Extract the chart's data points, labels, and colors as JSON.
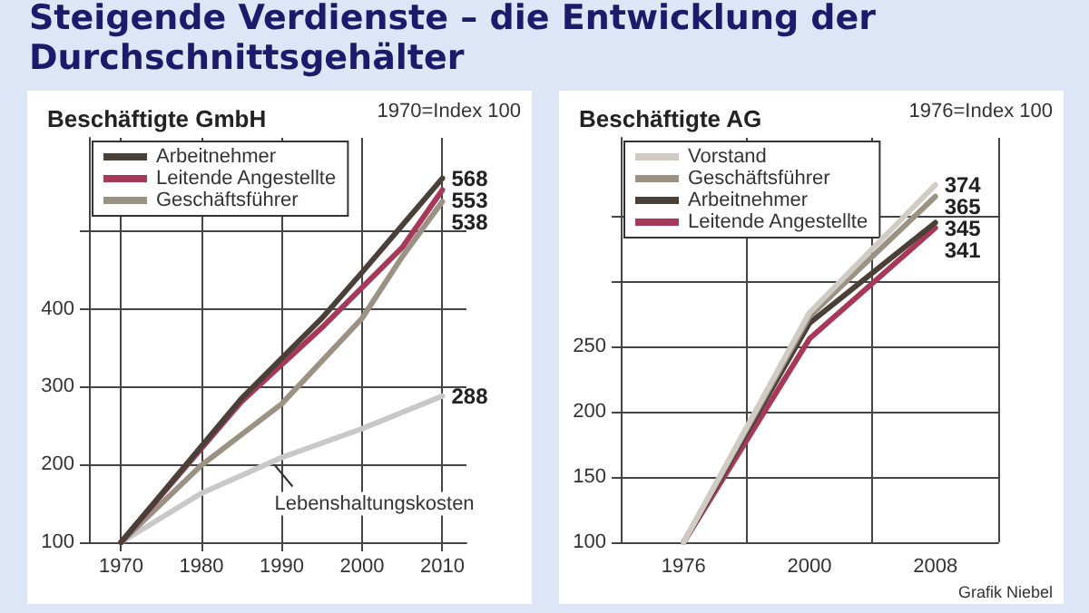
{
  "chart_data": [
    {
      "type": "line",
      "title": "Steigende Verdienste – die Entwicklung der Durchschnittsgehälter",
      "subtitle": "Beschäftigte GmbH",
      "xlim": [
        1966,
        2013
      ],
      "xticks": [
        1970,
        1980,
        1990,
        2000,
        2010
      ],
      "ylim": [
        100,
        620
      ],
      "yticks": [
        100,
        200,
        300,
        400,
        {
          "value": 500,
          "label": null
        }
      ],
      "grid": true,
      "legend": "top left",
      "marker": "none",
      "line_style": "solid",
      "series": [
        {
          "name": "Arbeitnehmer",
          "color": "#4a4038",
          "x": [
            1970,
            1985,
            1995,
            2000,
            2010
          ],
          "values": [
            100,
            285,
            388,
            447,
            568
          ],
          "value_labels": [
            null,
            null,
            null,
            null,
            "568"
          ]
        },
        {
          "name": "Leitende Angestellte",
          "color": "#a8385a",
          "x": [
            1970,
            1985,
            1995,
            2005,
            2010
          ],
          "values": [
            100,
            281,
            376,
            479,
            553
          ],
          "value_labels": [
            null,
            null,
            null,
            null,
            "553"
          ]
        },
        {
          "name": "Geschäftsführer",
          "color": "#9c9284",
          "x": [
            1970,
            1980,
            1990,
            2000,
            2005,
            2010
          ],
          "values": [
            100,
            199,
            278,
            388,
            467,
            538
          ],
          "value_labels": [
            null,
            null,
            null,
            null,
            null,
            "538"
          ]
        },
        {
          "color": "#c8c8c8",
          "x": [
            1970,
            1980,
            1990,
            2000,
            2010
          ],
          "values": [
            100,
            163,
            209,
            246,
            288
          ],
          "value_labels": [
            null,
            null,
            null,
            null,
            "288"
          ]
        }
      ],
      "annotations": [
        "1970=Index 100",
        {
          "text": "Lebenshaltungskosten",
          "x": 1990,
          "y": 209
        }
      ]
    },
    {
      "type": "line",
      "title": "Beschäftigte AG",
      "categories": [
        "1976",
        "2000",
        "2008"
      ],
      "ylim": [
        100,
        410
      ],
      "yticks": [
        100,
        150,
        200,
        250,
        {
          "value": 300,
          "label": null
        },
        {
          "value": 350,
          "label": null
        }
      ],
      "grid": true,
      "legend": "top left",
      "marker": "none",
      "line_style": "solid",
      "series": [
        {
          "name": "Vorstand",
          "color": "#d0ccc4",
          "values": [
            100,
            276,
            374
          ],
          "value_labels": [
            null,
            null,
            "374"
          ]
        },
        {
          "name": "Geschäftsführer",
          "color": "#9c9284",
          "values": [
            100,
            273,
            365
          ],
          "value_labels": [
            null,
            null,
            "365"
          ]
        },
        {
          "name": "Arbeitnehmer",
          "color": "#4a4038",
          "values": [
            100,
            268,
            345
          ],
          "value_labels": [
            null,
            null,
            "345"
          ]
        },
        {
          "name": "Leitende Angestellte",
          "color": "#a8385a",
          "values": [
            100,
            256,
            341
          ],
          "value_labels": [
            null,
            null,
            "341"
          ]
        }
      ],
      "annotations": [
        "1976=Index 100",
        "Grafik Niebel"
      ]
    }
  ]
}
